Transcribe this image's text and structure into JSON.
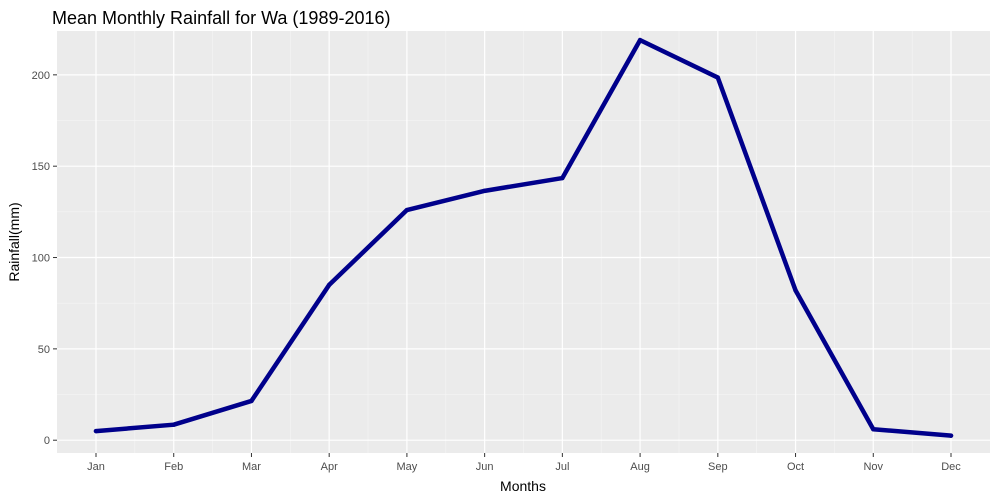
{
  "chart_data": {
    "type": "line",
    "title": "Mean Monthly Rainfall for Wa (1989-2016)",
    "xlabel": "Months",
    "ylabel": "Rainfall(mm)",
    "categories": [
      "Jan",
      "Feb",
      "Mar",
      "Apr",
      "May",
      "Jun",
      "Jul",
      "Aug",
      "Sep",
      "Oct",
      "Nov",
      "Dec"
    ],
    "values": [
      5,
      8.5,
      21.5,
      85,
      126,
      136.5,
      143.5,
      219,
      198.5,
      82,
      6,
      2.5
    ],
    "ylim": [
      -7,
      224
    ],
    "yticks": [
      0,
      50,
      100,
      150,
      200
    ],
    "grid": true,
    "colors": {
      "line": "#00008b",
      "panel": "#ebebeb",
      "grid_major": "#ffffff",
      "grid_minor": "#f5f5f5"
    }
  }
}
